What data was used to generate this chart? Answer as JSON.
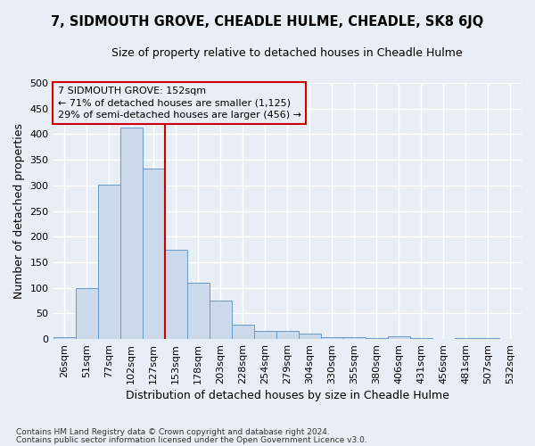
{
  "title": "7, SIDMOUTH GROVE, CHEADLE HULME, CHEADLE, SK8 6JQ",
  "subtitle": "Size of property relative to detached houses in Cheadle Hulme",
  "xlabel": "Distribution of detached houses by size in Cheadle Hulme",
  "ylabel": "Number of detached properties",
  "categories": [
    "26sqm",
    "51sqm",
    "77sqm",
    "102sqm",
    "127sqm",
    "153sqm",
    "178sqm",
    "203sqm",
    "228sqm",
    "254sqm",
    "279sqm",
    "304sqm",
    "330sqm",
    "355sqm",
    "380sqm",
    "406sqm",
    "431sqm",
    "456sqm",
    "481sqm",
    "507sqm",
    "532sqm"
  ],
  "values": [
    3,
    99,
    302,
    413,
    332,
    175,
    110,
    75,
    28,
    16,
    16,
    10,
    4,
    4,
    2,
    5,
    1,
    0,
    1,
    2,
    0
  ],
  "bar_color": "#ccd9ea",
  "bar_edge_color": "#6699cc",
  "vline_x_index": 4.5,
  "vline_color": "#cc0000",
  "annotation_title": "7 SIDMOUTH GROVE: 152sqm",
  "annotation_line2": "← 71% of detached houses are smaller (1,125)",
  "annotation_line3": "29% of semi-detached houses are larger (456) →",
  "annotation_box_color": "#cc0000",
  "ylim": [
    0,
    500
  ],
  "yticks": [
    0,
    50,
    100,
    150,
    200,
    250,
    300,
    350,
    400,
    450,
    500
  ],
  "footnote1": "Contains HM Land Registry data © Crown copyright and database right 2024.",
  "footnote2": "Contains public sector information licensed under the Open Government Licence v3.0.",
  "background_color": "#e8eef5",
  "grid_color": "#ffffff",
  "title_fontsize": 10.5,
  "subtitle_fontsize": 9,
  "ylabel_fontsize": 9,
  "xlabel_fontsize": 9,
  "tick_fontsize": 8,
  "annotation_fontsize": 8,
  "footnote_fontsize": 6.5
}
